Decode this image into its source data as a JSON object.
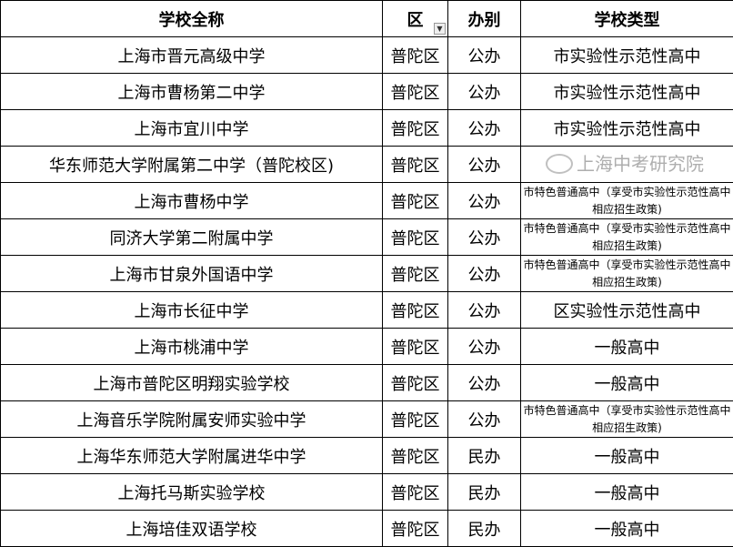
{
  "headers": [
    "学校全称",
    "区",
    "办别",
    "学校类型"
  ],
  "filter_icon": "filter-icon",
  "rows": [
    [
      "上海市晋元高级中学",
      "普陀区",
      "公办",
      "市实验性示范性高中"
    ],
    [
      "上海市曹杨第二中学",
      "普陀区",
      "公办",
      "市实验性示范性高中"
    ],
    [
      "上海市宜川中学",
      "普陀区",
      "公办",
      "市实验性示范性高中"
    ],
    [
      "华东师范大学附属第二中学（普陀校区)",
      "普陀区",
      "公办",
      ""
    ],
    [
      "上海市曹杨中学",
      "普陀区",
      "公办",
      "市特色普通高中（享受市实验性示范性高中相应招生政策)"
    ],
    [
      "同济大学第二附属中学",
      "普陀区",
      "公办",
      "市特色普通高中（享受市实验性示范性高中相应招生政策)"
    ],
    [
      "上海市甘泉外国语中学",
      "普陀区",
      "公办",
      "市特色普通高中（享受市实验性示范性高中相应招生政策)"
    ],
    [
      "上海市长征中学",
      "普陀区",
      "公办",
      "区实验性示范性高中"
    ],
    [
      "上海市桃浦中学",
      "普陀区",
      "公办",
      "一般高中"
    ],
    [
      "上海市普陀区明翔实验学校",
      "普陀区",
      "公办",
      "一般高中"
    ],
    [
      "上海音乐学院附属安师实验中学",
      "普陀区",
      "公办",
      "市特色普通高中（享受市实验性示范性高中相应招生政策)"
    ],
    [
      "上海华东师范大学附属进华中学",
      "普陀区",
      "民办",
      "一般高中"
    ],
    [
      "上海托马斯实验学校",
      "普陀区",
      "民办",
      "一般高中"
    ],
    [
      "上海培佳双语学校",
      "普陀区",
      "民办",
      "一般高中"
    ]
  ],
  "watermark": "上海中考研究院"
}
